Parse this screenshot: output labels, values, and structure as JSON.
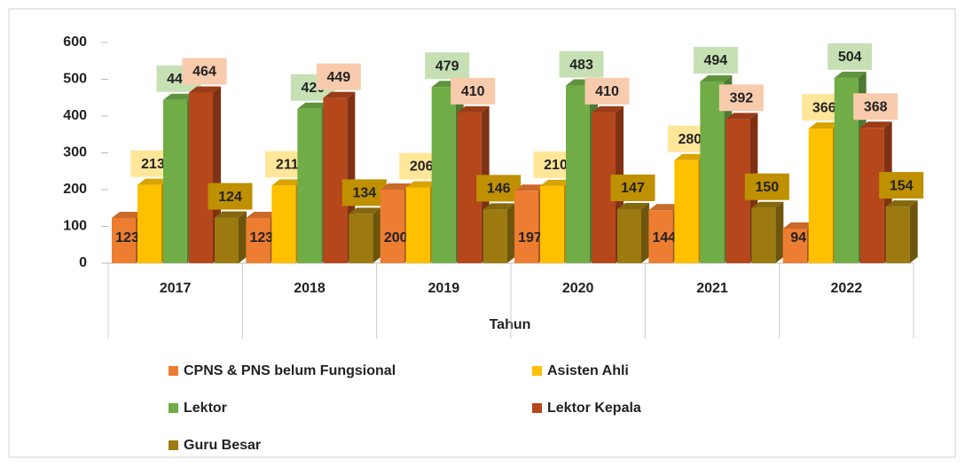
{
  "chart_data": {
    "type": "bar",
    "categories": [
      "2017",
      "2018",
      "2019",
      "2020",
      "2021",
      "2022"
    ],
    "series": [
      {
        "name": "CPNS & PNS belum Fungsional",
        "color": "#ed7d31",
        "label_bg": "none",
        "values": [
          123,
          123,
          200,
          197,
          144,
          94
        ]
      },
      {
        "name": "Asisten Ahli",
        "color": "#ffc000",
        "label_bg": "#ffe699",
        "values": [
          213,
          211,
          206,
          210,
          280,
          366
        ]
      },
      {
        "name": "Lektor",
        "color": "#70ad47",
        "label_bg": "#c6e0b4",
        "values": [
          444,
          420,
          479,
          483,
          494,
          504
        ]
      },
      {
        "name": "Lektor Kepala",
        "color": "#b5471b",
        "label_bg": "#f8cbad",
        "values": [
          464,
          449,
          410,
          410,
          392,
          368
        ]
      },
      {
        "name": "Guru Besar",
        "color": "#9c7a10",
        "label_bg": "#bf9000",
        "values": [
          124,
          134,
          146,
          147,
          150,
          154
        ]
      }
    ],
    "x_label": "Tahun",
    "ylim": [
      0,
      600
    ],
    "yticks": [
      0,
      100,
      200,
      300,
      400,
      500,
      600
    ],
    "grid": false
  }
}
